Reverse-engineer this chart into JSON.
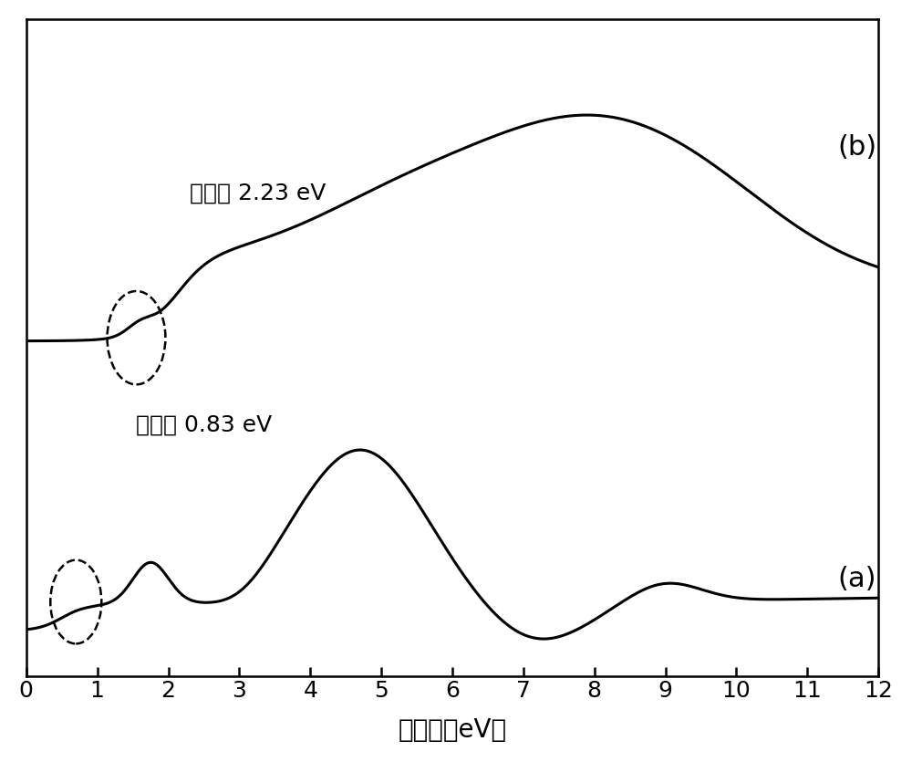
{
  "xlabel": "结合能（eV）",
  "xlabel_fontsize": 20,
  "tick_fontsize": 18,
  "label_b": "(b)",
  "label_a": "(a)",
  "annotation_b": "价带顶 2.23 eV",
  "annotation_a": "价带顶 0.83 eV",
  "xmin": 0,
  "xmax": 12,
  "line_color": "#000000",
  "line_width": 2.2,
  "background_color": "#ffffff"
}
